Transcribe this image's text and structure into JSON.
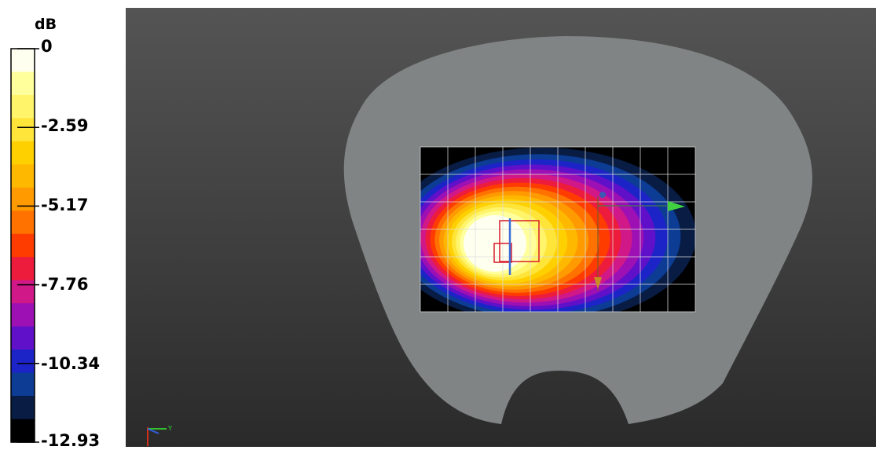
{
  "chart_data": {
    "type": "heatmap",
    "title": "",
    "colorbar": {
      "unit": "dB",
      "ticks": [
        "0",
        "-2.59",
        "-5.17",
        "-7.76",
        "-10.34",
        "-12.93"
      ],
      "range": [
        -12.93,
        0
      ],
      "bands": 15,
      "colors": [
        "#fffff0",
        "#ffff9c",
        "#fff46a",
        "#ffe43a",
        "#ffd000",
        "#ffb800",
        "#ff9a00",
        "#ff7200",
        "#ff3c00",
        "#ee1c3c",
        "#d01888",
        "#9c10b4",
        "#6010c8",
        "#1c24c8",
        "#0c3c94",
        "#081c44",
        "#000000"
      ]
    },
    "phantom": {
      "color": "#808484",
      "grid_columns": 10,
      "grid_rows": 6,
      "peak": "0"
    },
    "axis_triad": {
      "y_label": "Y"
    }
  }
}
